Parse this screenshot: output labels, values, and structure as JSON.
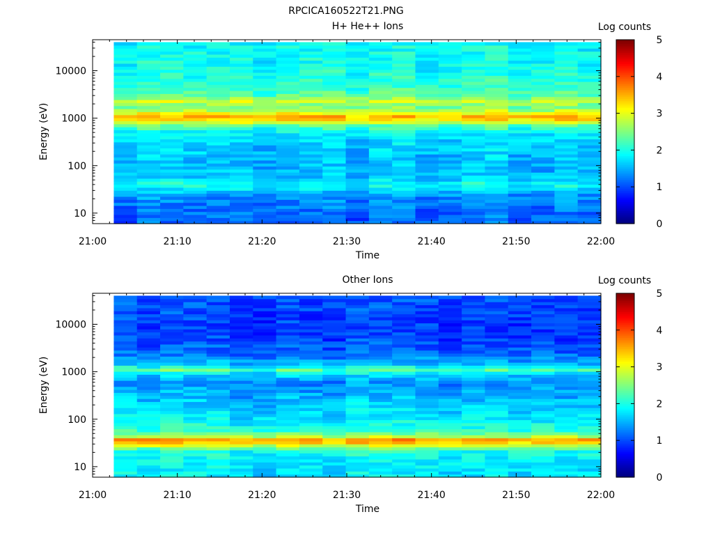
{
  "title": "RPCICA160522T21.PNG",
  "chart_data": [
    {
      "type": "heatmap",
      "title": "H+ He++ Ions",
      "xlabel": "Time",
      "ylabel": "Energy (eV)",
      "x_ticks": [
        "21:00",
        "21:10",
        "21:20",
        "21:30",
        "21:40",
        "21:50",
        "22:00"
      ],
      "xlim": [
        "21:00",
        "22:00"
      ],
      "data_time_range": [
        "21:02.5",
        "22:00"
      ],
      "ylim": [
        6,
        45000
      ],
      "yscale": "log",
      "y_ticks": [
        10,
        100,
        1000,
        10000
      ],
      "y_tick_labels": [
        "10",
        "100",
        "1000",
        "10000"
      ],
      "colorbar": {
        "label": "Log counts",
        "range": [
          0,
          5
        ],
        "ticks": [
          "0",
          "1",
          "2",
          "3",
          "4",
          "5"
        ]
      },
      "colormap": "jet",
      "energy_profile_log_counts": [
        {
          "energy": 7,
          "value": 1.1
        },
        {
          "energy": 10,
          "value": 1.15
        },
        {
          "energy": 15,
          "value": 1.2
        },
        {
          "energy": 22,
          "value": 1.3
        },
        {
          "energy": 30,
          "value": 1.55
        },
        {
          "energy": 40,
          "value": 2.0
        },
        {
          "energy": 55,
          "value": 1.6
        },
        {
          "energy": 80,
          "value": 1.5
        },
        {
          "energy": 120,
          "value": 1.55
        },
        {
          "energy": 180,
          "value": 1.6
        },
        {
          "energy": 300,
          "value": 1.65
        },
        {
          "energy": 500,
          "value": 1.8
        },
        {
          "energy": 700,
          "value": 2.3
        },
        {
          "energy": 900,
          "value": 3.2
        },
        {
          "energy": 1100,
          "value": 3.45
        },
        {
          "energy": 1400,
          "value": 2.8
        },
        {
          "energy": 1800,
          "value": 2.4
        },
        {
          "energy": 2300,
          "value": 2.85
        },
        {
          "energy": 3000,
          "value": 2.3
        },
        {
          "energy": 5000,
          "value": 2.05
        },
        {
          "energy": 10000,
          "value": 1.95
        },
        {
          "energy": 20000,
          "value": 1.9
        },
        {
          "energy": 40000,
          "value": 1.85
        }
      ]
    },
    {
      "type": "heatmap",
      "title": "Other Ions",
      "xlabel": "Time",
      "ylabel": "Energy (eV)",
      "x_ticks": [
        "21:00",
        "21:10",
        "21:20",
        "21:30",
        "21:40",
        "21:50",
        "22:00"
      ],
      "xlim": [
        "21:00",
        "22:00"
      ],
      "data_time_range": [
        "21:02.5",
        "22:00"
      ],
      "ylim": [
        6,
        45000
      ],
      "yscale": "log",
      "y_ticks": [
        10,
        100,
        1000,
        10000
      ],
      "y_tick_labels": [
        "10",
        "100",
        "1000",
        "10000"
      ],
      "colorbar": {
        "label": "Log counts",
        "range": [
          0,
          5
        ],
        "ticks": [
          "0",
          "1",
          "2",
          "3",
          "4",
          "5"
        ]
      },
      "colormap": "jet",
      "energy_profile_log_counts": [
        {
          "energy": 7,
          "value": 1.75
        },
        {
          "energy": 10,
          "value": 1.8
        },
        {
          "energy": 15,
          "value": 1.85
        },
        {
          "energy": 22,
          "value": 2.0
        },
        {
          "energy": 27,
          "value": 2.8
        },
        {
          "energy": 33,
          "value": 3.4
        },
        {
          "energy": 38,
          "value": 3.6
        },
        {
          "energy": 45,
          "value": 2.6
        },
        {
          "energy": 60,
          "value": 2.05
        },
        {
          "energy": 90,
          "value": 1.85
        },
        {
          "energy": 150,
          "value": 1.7
        },
        {
          "energy": 300,
          "value": 1.5
        },
        {
          "energy": 600,
          "value": 1.3
        },
        {
          "energy": 900,
          "value": 1.7
        },
        {
          "energy": 1100,
          "value": 2.3
        },
        {
          "energy": 1400,
          "value": 1.6
        },
        {
          "energy": 2500,
          "value": 1.1
        },
        {
          "energy": 5000,
          "value": 0.95
        },
        {
          "energy": 10000,
          "value": 0.9
        },
        {
          "energy": 20000,
          "value": 0.95
        },
        {
          "energy": 40000,
          "value": 1.0
        }
      ]
    }
  ]
}
